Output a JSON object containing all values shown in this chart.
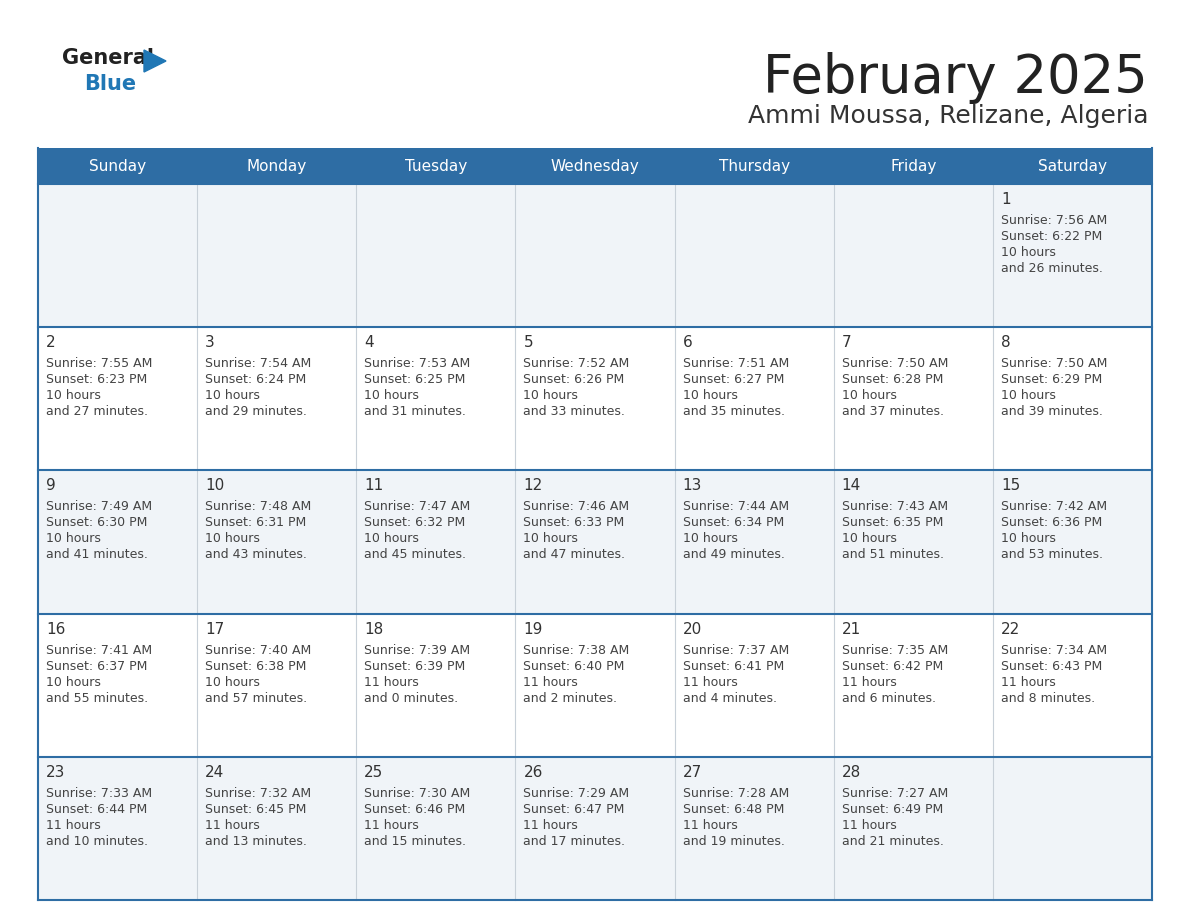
{
  "title": "February 2025",
  "subtitle": "Ammi Moussa, Relizane, Algeria",
  "days_of_week": [
    "Sunday",
    "Monday",
    "Tuesday",
    "Wednesday",
    "Thursday",
    "Friday",
    "Saturday"
  ],
  "header_bg": "#2e6da4",
  "header_text": "#ffffff",
  "separator_color": "#2e6da4",
  "cell_bg_even": "#f0f4f8",
  "cell_bg_odd": "#ffffff",
  "text_color": "#444444",
  "day_num_color": "#333333",
  "title_color": "#222222",
  "subtitle_color": "#333333",
  "logo_general_color": "#222222",
  "logo_blue_color": "#2077b5",
  "logo_triangle_color": "#2077b5",
  "calendar_data": [
    [
      null,
      null,
      null,
      null,
      null,
      null,
      {
        "day": 1,
        "sunrise": "7:56 AM",
        "sunset": "6:22 PM",
        "daylight": "10 hours and 26 minutes."
      }
    ],
    [
      {
        "day": 2,
        "sunrise": "7:55 AM",
        "sunset": "6:23 PM",
        "daylight": "10 hours and 27 minutes."
      },
      {
        "day": 3,
        "sunrise": "7:54 AM",
        "sunset": "6:24 PM",
        "daylight": "10 hours and 29 minutes."
      },
      {
        "day": 4,
        "sunrise": "7:53 AM",
        "sunset": "6:25 PM",
        "daylight": "10 hours and 31 minutes."
      },
      {
        "day": 5,
        "sunrise": "7:52 AM",
        "sunset": "6:26 PM",
        "daylight": "10 hours and 33 minutes."
      },
      {
        "day": 6,
        "sunrise": "7:51 AM",
        "sunset": "6:27 PM",
        "daylight": "10 hours and 35 minutes."
      },
      {
        "day": 7,
        "sunrise": "7:50 AM",
        "sunset": "6:28 PM",
        "daylight": "10 hours and 37 minutes."
      },
      {
        "day": 8,
        "sunrise": "7:50 AM",
        "sunset": "6:29 PM",
        "daylight": "10 hours and 39 minutes."
      }
    ],
    [
      {
        "day": 9,
        "sunrise": "7:49 AM",
        "sunset": "6:30 PM",
        "daylight": "10 hours and 41 minutes."
      },
      {
        "day": 10,
        "sunrise": "7:48 AM",
        "sunset": "6:31 PM",
        "daylight": "10 hours and 43 minutes."
      },
      {
        "day": 11,
        "sunrise": "7:47 AM",
        "sunset": "6:32 PM",
        "daylight": "10 hours and 45 minutes."
      },
      {
        "day": 12,
        "sunrise": "7:46 AM",
        "sunset": "6:33 PM",
        "daylight": "10 hours and 47 minutes."
      },
      {
        "day": 13,
        "sunrise": "7:44 AM",
        "sunset": "6:34 PM",
        "daylight": "10 hours and 49 minutes."
      },
      {
        "day": 14,
        "sunrise": "7:43 AM",
        "sunset": "6:35 PM",
        "daylight": "10 hours and 51 minutes."
      },
      {
        "day": 15,
        "sunrise": "7:42 AM",
        "sunset": "6:36 PM",
        "daylight": "10 hours and 53 minutes."
      }
    ],
    [
      {
        "day": 16,
        "sunrise": "7:41 AM",
        "sunset": "6:37 PM",
        "daylight": "10 hours and 55 minutes."
      },
      {
        "day": 17,
        "sunrise": "7:40 AM",
        "sunset": "6:38 PM",
        "daylight": "10 hours and 57 minutes."
      },
      {
        "day": 18,
        "sunrise": "7:39 AM",
        "sunset": "6:39 PM",
        "daylight": "11 hours and 0 minutes."
      },
      {
        "day": 19,
        "sunrise": "7:38 AM",
        "sunset": "6:40 PM",
        "daylight": "11 hours and 2 minutes."
      },
      {
        "day": 20,
        "sunrise": "7:37 AM",
        "sunset": "6:41 PM",
        "daylight": "11 hours and 4 minutes."
      },
      {
        "day": 21,
        "sunrise": "7:35 AM",
        "sunset": "6:42 PM",
        "daylight": "11 hours and 6 minutes."
      },
      {
        "day": 22,
        "sunrise": "7:34 AM",
        "sunset": "6:43 PM",
        "daylight": "11 hours and 8 minutes."
      }
    ],
    [
      {
        "day": 23,
        "sunrise": "7:33 AM",
        "sunset": "6:44 PM",
        "daylight": "11 hours and 10 minutes."
      },
      {
        "day": 24,
        "sunrise": "7:32 AM",
        "sunset": "6:45 PM",
        "daylight": "11 hours and 13 minutes."
      },
      {
        "day": 25,
        "sunrise": "7:30 AM",
        "sunset": "6:46 PM",
        "daylight": "11 hours and 15 minutes."
      },
      {
        "day": 26,
        "sunrise": "7:29 AM",
        "sunset": "6:47 PM",
        "daylight": "11 hours and 17 minutes."
      },
      {
        "day": 27,
        "sunrise": "7:28 AM",
        "sunset": "6:48 PM",
        "daylight": "11 hours and 19 minutes."
      },
      {
        "day": 28,
        "sunrise": "7:27 AM",
        "sunset": "6:49 PM",
        "daylight": "11 hours and 21 minutes."
      },
      null
    ]
  ]
}
